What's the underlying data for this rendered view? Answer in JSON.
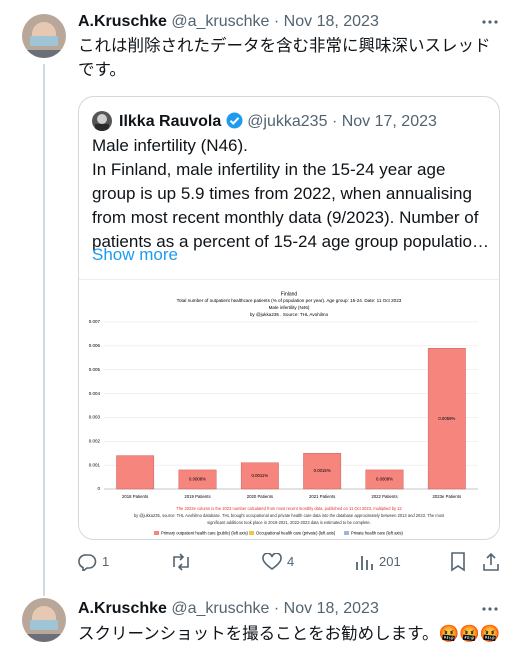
{
  "tweets": [
    {
      "name": "A.Kruschke",
      "handle": "@a_kruschke",
      "separator": "·",
      "date": "Nov 18, 2023",
      "text": "これは削除されたデータを含む非常に興味深いスレッドです。",
      "quote": {
        "name": "Ilkka Rauvola",
        "handle": "@jukka235",
        "separator": "·",
        "date": "Nov 17, 2023",
        "lines": [
          "Male infertility (N46).",
          "In Finland, male infertility in the 15-24 year age",
          "group is up 5.9 times from 2022, when annualising",
          "from most recent monthly data (9/2023). Number of",
          "patients as a percent of 15-24 age group populatio…"
        ],
        "show_more": "Show more"
      },
      "stats": {
        "replies": 1,
        "likes": 4,
        "views": 201
      }
    },
    {
      "name": "A.Kruschke",
      "handle": "@a_kruschke",
      "separator": "·",
      "date": "Nov 18, 2023",
      "text": "スクリーンショットを撮ることをお勧めします。🤬🤬🤬"
    }
  ],
  "chart_data": {
    "type": "bar",
    "title": "Finland",
    "subtitle": "Total number of outpatient healthcare patients (% of population per year). Age group: 15-24. Date: 11 Oct 2023",
    "subtitle2": "Male infertility (N46)",
    "credit": "by @jukka235 . Source: THL Avohilmo",
    "categories": [
      "2018 Patients",
      "2019 Patients",
      "2020 Patients",
      "2021 Patients",
      "2022 Patients",
      "2023e Patients"
    ],
    "series": [
      {
        "name": "Primary outpatient health care (public) (left axis)",
        "color": "#f6857d",
        "values": [
          0.0014,
          0.0008,
          0.0011,
          0.0015,
          0.0008,
          0.0059
        ],
        "value_labels": [
          null,
          "0.0008%",
          "0.0011%",
          "0.0015%",
          "0.0008%",
          "0.0059%"
        ]
      }
    ],
    "legend_items": [
      {
        "name": "Occupational health care (private) (left axis)",
        "color": "#f4c542"
      },
      {
        "name": "Private health care (left axis)",
        "color": "#9fb6d8"
      }
    ],
    "ylim": [
      0,
      0.007
    ],
    "yticks": [
      0,
      0.001,
      0.002,
      0.003,
      0.004,
      0.005,
      0.006,
      0.007
    ],
    "grid": true,
    "notes": [
      "The 2023e column is the 2023 number calculated from most recent monthly data, published on 11 Oct 2023, multiplied by 12",
      "by @jukka235, source: THL Avohilmo database. THL brought occupational and private health care data into the database approximately between 2013 and 2023. The most",
      "significant additions took place in 2019-2021. 2022-2023 data is estimated to be complete."
    ]
  }
}
